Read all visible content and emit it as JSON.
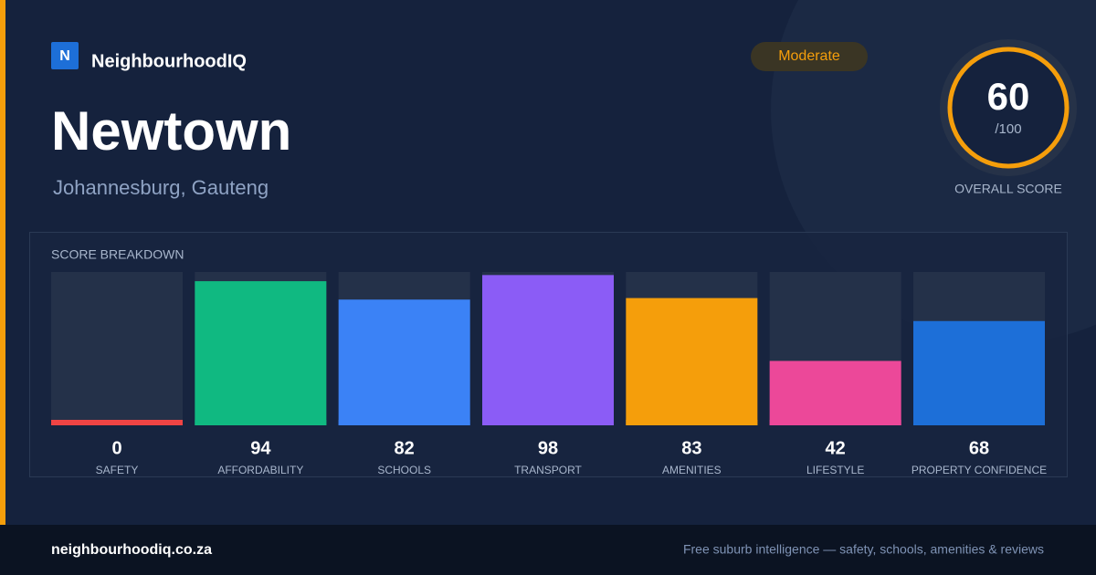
{
  "header": {
    "logo": "N",
    "brand": "NeighbourhoodIQ",
    "badge": "Moderate",
    "title": "Newtown",
    "subtitle": "Johannesburg, Gauteng",
    "score": 60,
    "score_max": "/100",
    "score_label": "OVERALL SCORE"
  },
  "chart_data": {
    "type": "bar",
    "title": "SCORE BREAKDOWN",
    "categories": [
      "SAFETY",
      "AFFORDABILITY",
      "SCHOOLS",
      "TRANSPORT",
      "AMENITIES",
      "LIFESTYLE",
      "PROPERTY CONFIDENCE"
    ],
    "values": [
      0,
      94,
      82,
      98,
      83,
      42,
      68
    ],
    "colors": [
      "#ef4444",
      "#10b981",
      "#3b82f6",
      "#8b5cf6",
      "#f59e0b",
      "#ec4899",
      "#1d6fd8"
    ],
    "ylim": [
      0,
      100
    ]
  },
  "footer": {
    "url": "neighbourhoodiq.co.za",
    "tagline": "Free suburb intelligence — safety, schools, amenities & reviews"
  }
}
